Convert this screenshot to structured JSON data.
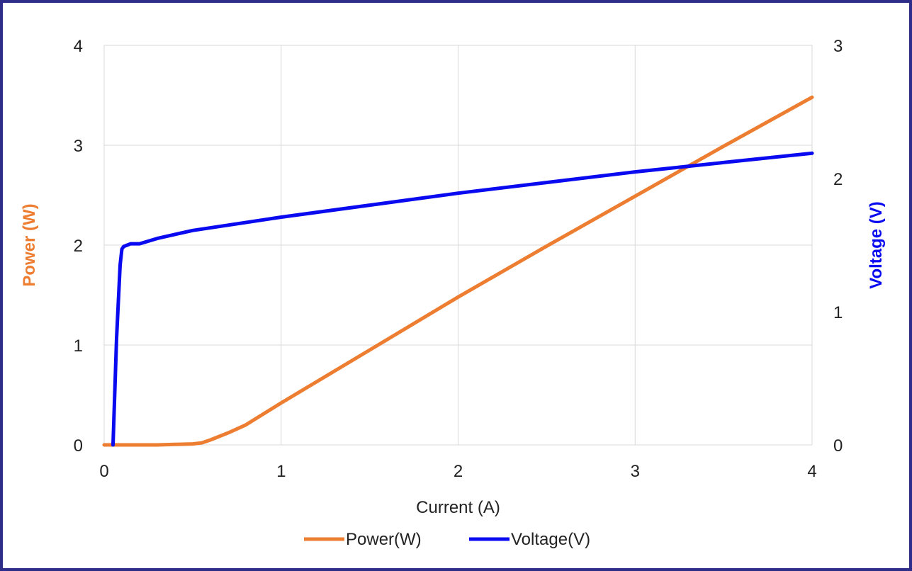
{
  "chart_data": {
    "type": "line",
    "xlabel": "Current (A)",
    "ylabel_left": "Power (W)",
    "ylabel_right": "Voltage (V)",
    "xlim": [
      0,
      4
    ],
    "ylim_left": [
      0,
      4
    ],
    "ylim_right": [
      0,
      3
    ],
    "x_ticks": [
      "0",
      "1",
      "2",
      "3",
      "4"
    ],
    "y_left_ticks": [
      "0",
      "1",
      "2",
      "3",
      "4"
    ],
    "y_right_ticks": [
      "0",
      "1",
      "2",
      "3"
    ],
    "grid": true,
    "legend_position": "bottom",
    "series": [
      {
        "name": "Power(W)",
        "axis": "left",
        "color": "#ED7D31",
        "x": [
          0,
          0.1,
          0.2,
          0.3,
          0.4,
          0.5,
          0.55,
          0.6,
          0.7,
          0.8,
          1.0,
          1.5,
          2.0,
          2.5,
          3.0,
          3.5,
          4.0
        ],
        "y": [
          0,
          0,
          0,
          0,
          0.005,
          0.01,
          0.02,
          0.05,
          0.12,
          0.2,
          0.42,
          0.95,
          1.48,
          1.99,
          2.49,
          2.99,
          3.48
        ]
      },
      {
        "name": "Voltage(V)",
        "axis": "right",
        "color": "#0A0AF0",
        "x": [
          0.05,
          0.07,
          0.09,
          0.1,
          0.11,
          0.13,
          0.15,
          0.2,
          0.3,
          0.5,
          0.7,
          1.0,
          1.5,
          2.0,
          2.5,
          3.0,
          3.5,
          4.0
        ],
        "y": [
          0,
          0.8,
          1.35,
          1.47,
          1.49,
          1.5,
          1.51,
          1.51,
          1.55,
          1.61,
          1.65,
          1.71,
          1.8,
          1.89,
          1.97,
          2.05,
          2.12,
          2.19
        ]
      }
    ]
  }
}
